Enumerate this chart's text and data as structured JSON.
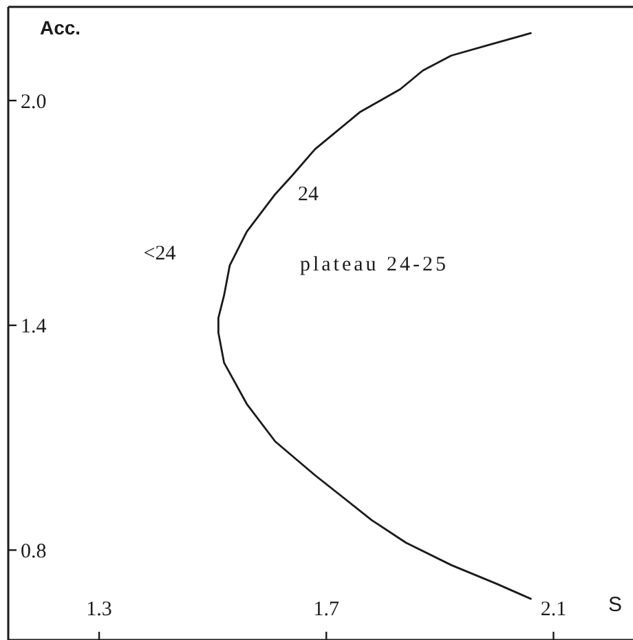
{
  "chart_data": {
    "type": "line",
    "xlabel": "S",
    "ylabel": "Acc.",
    "x": [
      2.06,
      1.99,
      1.92,
      1.87,
      1.83,
      1.76,
      1.72,
      1.68,
      1.64,
      1.61,
      1.56,
      1.53,
      1.52,
      1.51,
      1.51,
      1.52,
      1.56,
      1.61,
      1.68,
      1.78,
      1.84,
      1.92,
      2.0,
      2.06
    ],
    "values": [
      2.18,
      2.15,
      2.12,
      2.08,
      2.03,
      1.97,
      1.92,
      1.87,
      1.8,
      1.75,
      1.65,
      1.56,
      1.48,
      1.42,
      1.38,
      1.3,
      1.19,
      1.09,
      1.0,
      0.88,
      0.82,
      0.76,
      0.71,
      0.67
    ],
    "color": "#1a1a1a",
    "xlim": [
      1.14,
      2.24
    ],
    "ylim": [
      0.56,
      2.25
    ],
    "xticks": [
      1.3,
      1.7,
      2.1
    ],
    "yticks": [
      0.8,
      1.4,
      {
        "value": 2.0,
        "label": "2.0"
      }
    ],
    "annotations": [
      "<24",
      "24",
      "plateau 24-25"
    ]
  }
}
